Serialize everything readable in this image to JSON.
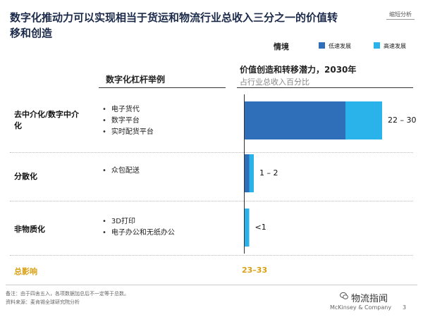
{
  "page": {
    "title": "数字化推动力可以实现相当于货运和物流行业总收入三分之一的价值转移和创造",
    "tag": "缩短分析",
    "lever_header": "数字化杠杆举例",
    "total_label": "总影响",
    "footnote": "备注：由于四舍五入，各项数据加总后不一定等于总数。",
    "source": "资料来源：麦肯锡全球研究院分析",
    "watermark": "物流指闻",
    "brand": "McKinsey & Company",
    "page_number": "3"
  },
  "chart_data": {
    "type": "bar",
    "orientation": "horizontal",
    "stacked": true,
    "title": "价值创造和转移潜力，2030年",
    "subtitle": "占行业总收入百分比",
    "legend": {
      "title": "情境",
      "placement": "top-right",
      "entries": [
        "低速发展",
        "高速发展"
      ]
    },
    "categories": [
      "去中介化/数字中介化",
      "分散化",
      "非物质化"
    ],
    "levers": [
      [
        "电子货代",
        "数字平台",
        "实时配货平台"
      ],
      [
        "众包配送"
      ],
      [
        "3D打印",
        "电子办公和无纸办公"
      ]
    ],
    "series": [
      {
        "name": "低速发展",
        "values": [
          22,
          1,
          0
        ],
        "color": "#2f6fba"
      },
      {
        "name": "高速发展",
        "values": [
          8,
          1,
          1
        ],
        "color": "#2ab3ea"
      }
    ],
    "range_labels": [
      "22 – 30",
      "1 – 2",
      "<1"
    ],
    "total": "23–33",
    "xlim": [
      0,
      30
    ],
    "grid": false
  }
}
